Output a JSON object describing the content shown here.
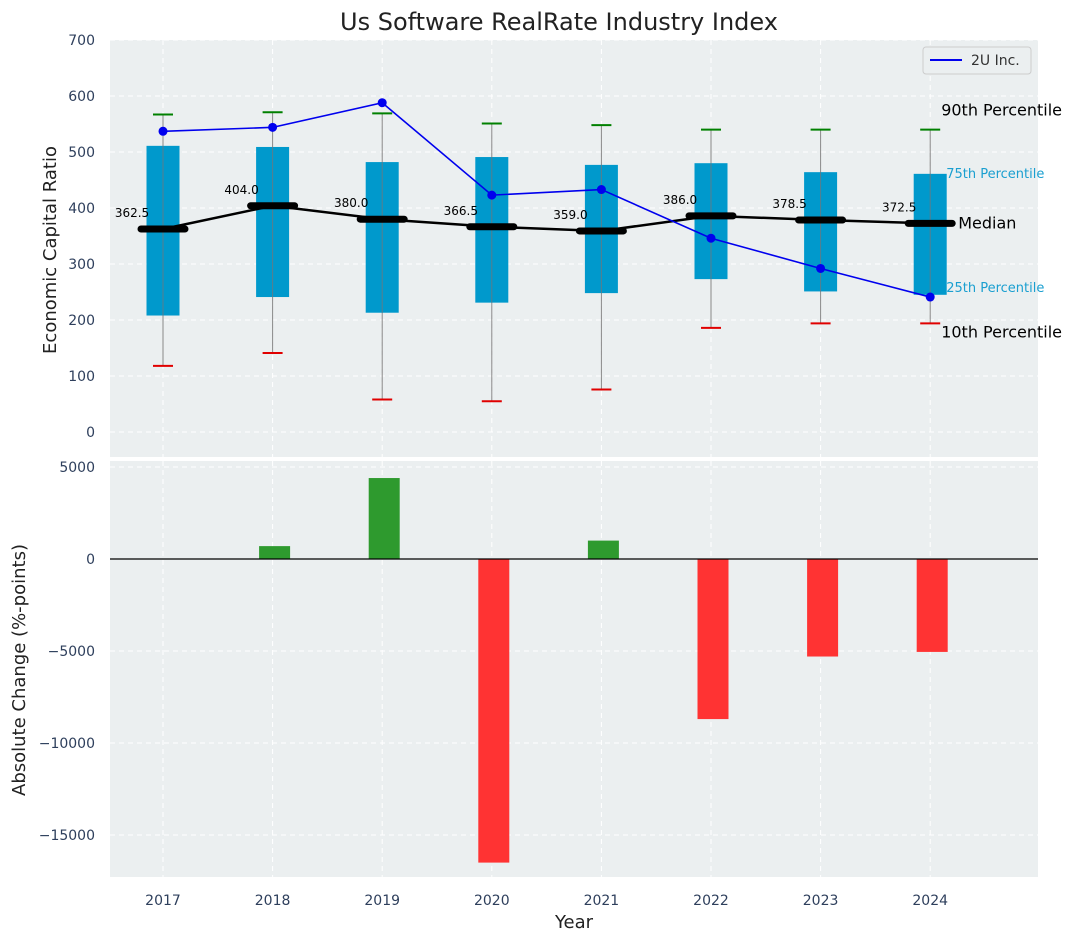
{
  "chart_data": [
    {
      "type": "box",
      "title": "Us Software RealRate Industry Index",
      "ylabel": "Economic Capital Ratio",
      "ylim": [
        -50,
        700
      ],
      "yticks": [
        0,
        100,
        200,
        300,
        400,
        500,
        600,
        700
      ],
      "categories": [
        "2017",
        "2018",
        "2019",
        "2020",
        "2021",
        "2022",
        "2023",
        "2024"
      ],
      "p10": [
        118,
        141,
        58,
        55,
        76,
        186,
        194,
        194
      ],
      "p25": [
        208,
        241,
        213,
        231,
        248,
        273,
        251,
        245
      ],
      "median": [
        362.5,
        404.0,
        380.0,
        366.5,
        359.0,
        386.0,
        378.5,
        372.5
      ],
      "p75": [
        511,
        509,
        482,
        491,
        477,
        480,
        464,
        461
      ],
      "p90": [
        567,
        571,
        569,
        551,
        548,
        540,
        540,
        540
      ],
      "median_labels": [
        "362.5",
        "404.0",
        "380.0",
        "366.5",
        "359.0",
        "386.0",
        "378.5",
        "372.5"
      ],
      "series": [
        {
          "name": "2U Inc.",
          "values": [
            537,
            544,
            588,
            423,
            433,
            346,
            292,
            241
          ]
        }
      ],
      "annotations": {
        "p90": "90th Percentile",
        "p75": "75th Percentile",
        "median": "Median",
        "p25": "25th Percentile",
        "p10": "10th Percentile"
      },
      "legend_position": "top-right",
      "grid": true,
      "colors": {
        "box": "#0099cc",
        "median": "#000000",
        "series": "#0000ee",
        "p90_cap": "#008000",
        "p10_cap": "#e00000",
        "whisker": "#888888",
        "background": "#ebeff0"
      }
    },
    {
      "type": "bar",
      "xlabel": "Year",
      "ylabel": "Absolute Change (%-points)",
      "ylim": [
        -17500,
        5000
      ],
      "yticks": [
        5000,
        0,
        -5000,
        -10000,
        -15000
      ],
      "ytick_labels": [
        "5000",
        "0",
        "−5000",
        "−10000",
        "−15000"
      ],
      "categories": [
        "2017",
        "2018",
        "2019",
        "2020",
        "2021",
        "2022",
        "2023",
        "2024"
      ],
      "values": [
        0,
        700,
        4400,
        -16500,
        1000,
        -8700,
        -5300,
        -5050
      ],
      "grid": true,
      "colors": {
        "positive": "#2e9a2e",
        "negative": "#ff3333",
        "zero_line": "#000000",
        "background": "#ebeff0"
      }
    }
  ]
}
